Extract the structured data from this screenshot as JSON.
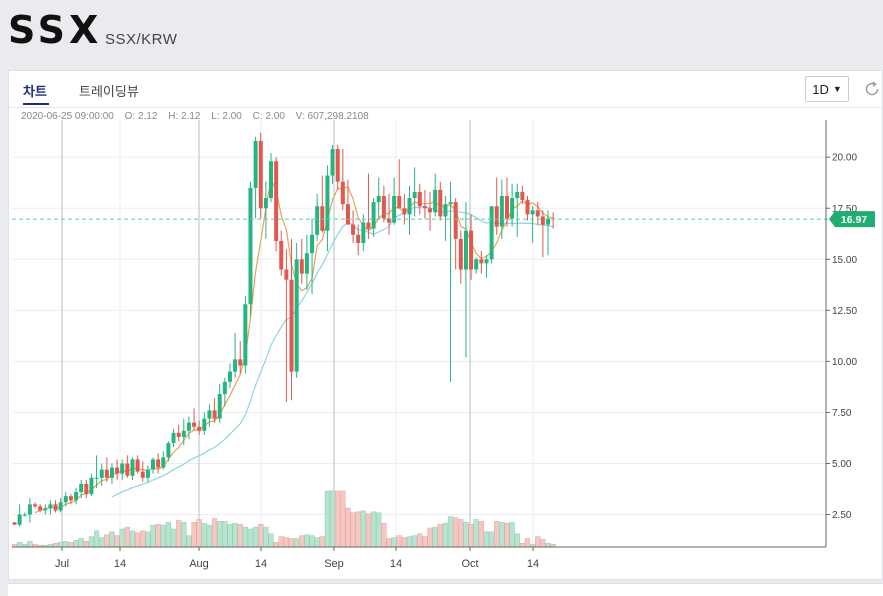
{
  "header": {
    "symbol": "SSX",
    "pair": "SSX/KRW"
  },
  "tabs": [
    {
      "label": "차트"
    },
    {
      "label": "트레이딩뷰"
    }
  ],
  "interval": {
    "label": "1D"
  },
  "icons": {
    "refresh": "refresh-icon",
    "caret": "caret-down-icon"
  },
  "ohlc": {
    "date": "2020-06-25 09:00:00",
    "o": "O: 2.12",
    "h": "H: 2.12",
    "l": "L: 2.00",
    "c": "C: 2.00",
    "v": "V: 607,298.2108"
  },
  "price_tag": "16.97",
  "colors": {
    "up": "#26b47f",
    "down": "#e0584f",
    "ma_short": "#e8a25a",
    "ma_long": "#8ed3e2",
    "price_line": "#5fc9a8",
    "tag": "#1fae72"
  },
  "chart_data": {
    "type": "candlestick",
    "x_ticks": [
      "Jul",
      "14",
      "Aug",
      "14",
      "Sep",
      "14",
      "Oct",
      "14"
    ],
    "y_ticks": [
      "2.50",
      "5.00",
      "7.50",
      "10.00",
      "12.50",
      "15.00",
      "17.50",
      "20.00"
    ],
    "ylim": [
      0.5,
      22
    ],
    "current_price": 16.97,
    "candles": [
      [
        2.12,
        2.12,
        2.0,
        2.0,
        0.3
      ],
      [
        2.0,
        3.0,
        1.9,
        2.5,
        0.5
      ],
      [
        2.5,
        2.6,
        2.4,
        2.5,
        0.3
      ],
      [
        2.5,
        3.3,
        2.1,
        3.0,
        0.6
      ],
      [
        3.0,
        3.1,
        2.8,
        2.9,
        0.3
      ],
      [
        2.9,
        3.0,
        2.6,
        2.7,
        0.2
      ],
      [
        2.7,
        3.0,
        2.5,
        2.8,
        0.2
      ],
      [
        2.8,
        3.2,
        2.5,
        3.0,
        0.3
      ],
      [
        3.0,
        3.2,
        2.6,
        2.7,
        0.4
      ],
      [
        2.7,
        3.3,
        2.6,
        3.1,
        0.5
      ],
      [
        3.1,
        3.6,
        2.9,
        3.4,
        0.6
      ],
      [
        3.4,
        3.5,
        3.0,
        3.2,
        0.5
      ],
      [
        3.2,
        3.8,
        3.0,
        3.6,
        0.7
      ],
      [
        3.6,
        4.2,
        3.3,
        4.0,
        0.9
      ],
      [
        4.0,
        4.2,
        3.3,
        3.5,
        0.6
      ],
      [
        3.5,
        4.5,
        3.4,
        4.3,
        1.1
      ],
      [
        4.3,
        5.4,
        3.8,
        4.3,
        1.7
      ],
      [
        4.3,
        5.0,
        3.9,
        4.7,
        1.0
      ],
      [
        4.7,
        5.3,
        4.1,
        4.3,
        1.3
      ],
      [
        4.3,
        5.0,
        4.0,
        4.8,
        1.6
      ],
      [
        4.8,
        5.2,
        4.2,
        4.5,
        1.2
      ],
      [
        4.5,
        5.2,
        4.2,
        5.0,
        1.9
      ],
      [
        5.0,
        5.4,
        4.3,
        4.4,
        2.1
      ],
      [
        4.4,
        5.3,
        4.2,
        5.2,
        1.7
      ],
      [
        5.2,
        5.4,
        4.5,
        4.6,
        1.5
      ],
      [
        4.6,
        5.1,
        4.1,
        4.3,
        1.7
      ],
      [
        4.3,
        4.9,
        4.1,
        4.7,
        1.6
      ],
      [
        4.7,
        5.3,
        4.5,
        5.2,
        2.3
      ],
      [
        5.2,
        5.5,
        4.5,
        4.8,
        2.4
      ],
      [
        4.8,
        5.6,
        4.7,
        5.3,
        2.3
      ],
      [
        5.3,
        6.1,
        5.1,
        6.0,
        2.6
      ],
      [
        6.0,
        6.7,
        5.8,
        6.5,
        1.9
      ],
      [
        6.5,
        6.9,
        6.1,
        6.3,
        2.8
      ],
      [
        6.3,
        7.2,
        5.9,
        6.6,
        2.6
      ],
      [
        6.6,
        7.3,
        6.2,
        7.0,
        1.2
      ],
      [
        7.0,
        7.7,
        6.6,
        6.8,
        2.6
      ],
      [
        6.8,
        7.1,
        6.4,
        6.6,
        2.9
      ],
      [
        6.6,
        7.5,
        6.4,
        7.2,
        2.5
      ],
      [
        7.2,
        7.9,
        6.8,
        7.6,
        2.3
      ],
      [
        7.6,
        8.2,
        7.0,
        7.2,
        3.0
      ],
      [
        7.2,
        8.9,
        7.0,
        8.4,
        2.7
      ],
      [
        8.4,
        9.2,
        7.8,
        9.0,
        2.7
      ],
      [
        9.0,
        9.9,
        8.7,
        9.5,
        2.4
      ],
      [
        9.5,
        11.4,
        9.2,
        10.1,
        2.5
      ],
      [
        10.1,
        11.0,
        9.4,
        9.8,
        2.4
      ],
      [
        9.8,
        13.2,
        9.4,
        12.8,
        2.1
      ],
      [
        12.8,
        18.8,
        12.2,
        18.5,
        1.9
      ],
      [
        18.5,
        21.0,
        17.0,
        20.8,
        2.1
      ],
      [
        20.8,
        21.2,
        17.0,
        17.5,
        2.4
      ],
      [
        17.5,
        18.8,
        16.0,
        18.0,
        2.1
      ],
      [
        18.0,
        20.2,
        17.8,
        19.8,
        1.4
      ],
      [
        19.8,
        20.0,
        15.4,
        15.9,
        0.5
      ],
      [
        15.9,
        16.4,
        14.2,
        14.5,
        1.1
      ],
      [
        14.5,
        15.5,
        8.0,
        14.0,
        1.0
      ],
      [
        14.0,
        16.0,
        8.1,
        9.5,
        0.9
      ],
      [
        9.5,
        15.8,
        9.2,
        15.0,
        0.9
      ],
      [
        15.0,
        16.0,
        13.8,
        14.3,
        1.2
      ],
      [
        14.3,
        16.2,
        13.5,
        15.3,
        1.3
      ],
      [
        15.3,
        17.0,
        13.3,
        16.2,
        1.2
      ],
      [
        16.2,
        18.2,
        15.9,
        17.6,
        1.0
      ],
      [
        17.6,
        19.1,
        16.3,
        16.4,
        1.1
      ],
      [
        16.4,
        19.6,
        15.4,
        19.1,
        5.9
      ],
      [
        19.1,
        20.6,
        18.7,
        20.4,
        5.9
      ],
      [
        20.4,
        20.6,
        18.4,
        18.8,
        5.9
      ],
      [
        18.8,
        20.4,
        17.4,
        17.7,
        5.9
      ],
      [
        17.7,
        18.9,
        16.7,
        16.7,
        4.1
      ],
      [
        16.7,
        17.4,
        15.8,
        16.2,
        3.6
      ],
      [
        16.2,
        16.7,
        15.2,
        15.8,
        3.7
      ],
      [
        15.8,
        17.2,
        15.4,
        16.8,
        3.8
      ],
      [
        16.8,
        19.2,
        16.0,
        16.5,
        3.5
      ],
      [
        16.5,
        18.0,
        16.1,
        17.8,
        3.7
      ],
      [
        17.8,
        19.0,
        17.0,
        18.1,
        3.6
      ],
      [
        18.1,
        18.6,
        16.8,
        17.0,
        2.5
      ],
      [
        17.0,
        18.2,
        16.2,
        16.8,
        0.9
      ],
      [
        16.8,
        19.0,
        16.7,
        18.1,
        1.0
      ],
      [
        18.1,
        19.9,
        17.5,
        17.5,
        1.2
      ],
      [
        17.5,
        18.2,
        16.7,
        17.2,
        1.0
      ],
      [
        17.2,
        18.6,
        16.2,
        18.0,
        1.1
      ],
      [
        18.0,
        19.5,
        17.1,
        18.3,
        1.2
      ],
      [
        18.3,
        18.7,
        17.2,
        17.6,
        1.4
      ],
      [
        17.6,
        18.4,
        17.0,
        17.5,
        1.1
      ],
      [
        17.5,
        18.3,
        16.4,
        17.3,
        2.0
      ],
      [
        17.3,
        19.2,
        17.1,
        18.4,
        2.1
      ],
      [
        18.4,
        18.8,
        16.9,
        17.1,
        2.4
      ],
      [
        17.1,
        18.1,
        15.9,
        17.7,
        2.5
      ],
      [
        17.7,
        18.8,
        9.0,
        17.8,
        3.2
      ],
      [
        17.8,
        18.0,
        14.5,
        16.0,
        3.1
      ],
      [
        16.0,
        16.4,
        13.8,
        14.5,
        2.9
      ],
      [
        14.5,
        17.8,
        10.2,
        16.4,
        2.6
      ],
      [
        16.4,
        17.2,
        14.0,
        14.5,
        2.4
      ],
      [
        14.5,
        15.1,
        14.3,
        15.0,
        2.9
      ],
      [
        15.0,
        15.4,
        14.3,
        14.8,
        2.7
      ],
      [
        14.8,
        15.2,
        14.1,
        15.0,
        1.6
      ],
      [
        15.0,
        17.6,
        14.8,
        17.6,
        1.6
      ],
      [
        17.6,
        19.0,
        16.2,
        16.6,
        2.7
      ],
      [
        16.6,
        18.9,
        16.0,
        18.1,
        2.6
      ],
      [
        18.1,
        19.0,
        16.6,
        17.0,
        2.5
      ],
      [
        17.0,
        18.7,
        16.6,
        18.0,
        2.6
      ],
      [
        18.0,
        18.7,
        16.1,
        18.3,
        1.4
      ],
      [
        18.3,
        18.6,
        17.7,
        17.9,
        0.4
      ],
      [
        17.9,
        18.1,
        16.9,
        17.2,
        0.9
      ],
      [
        17.2,
        17.6,
        15.8,
        17.4,
        0.3
      ],
      [
        17.4,
        17.8,
        16.7,
        17.1,
        1.1
      ],
      [
        17.1,
        17.4,
        15.1,
        16.7,
        0.8
      ],
      [
        16.7,
        17.4,
        15.2,
        17.0,
        0.4
      ],
      [
        17.0,
        17.3,
        16.5,
        16.97,
        0.3
      ]
    ]
  }
}
